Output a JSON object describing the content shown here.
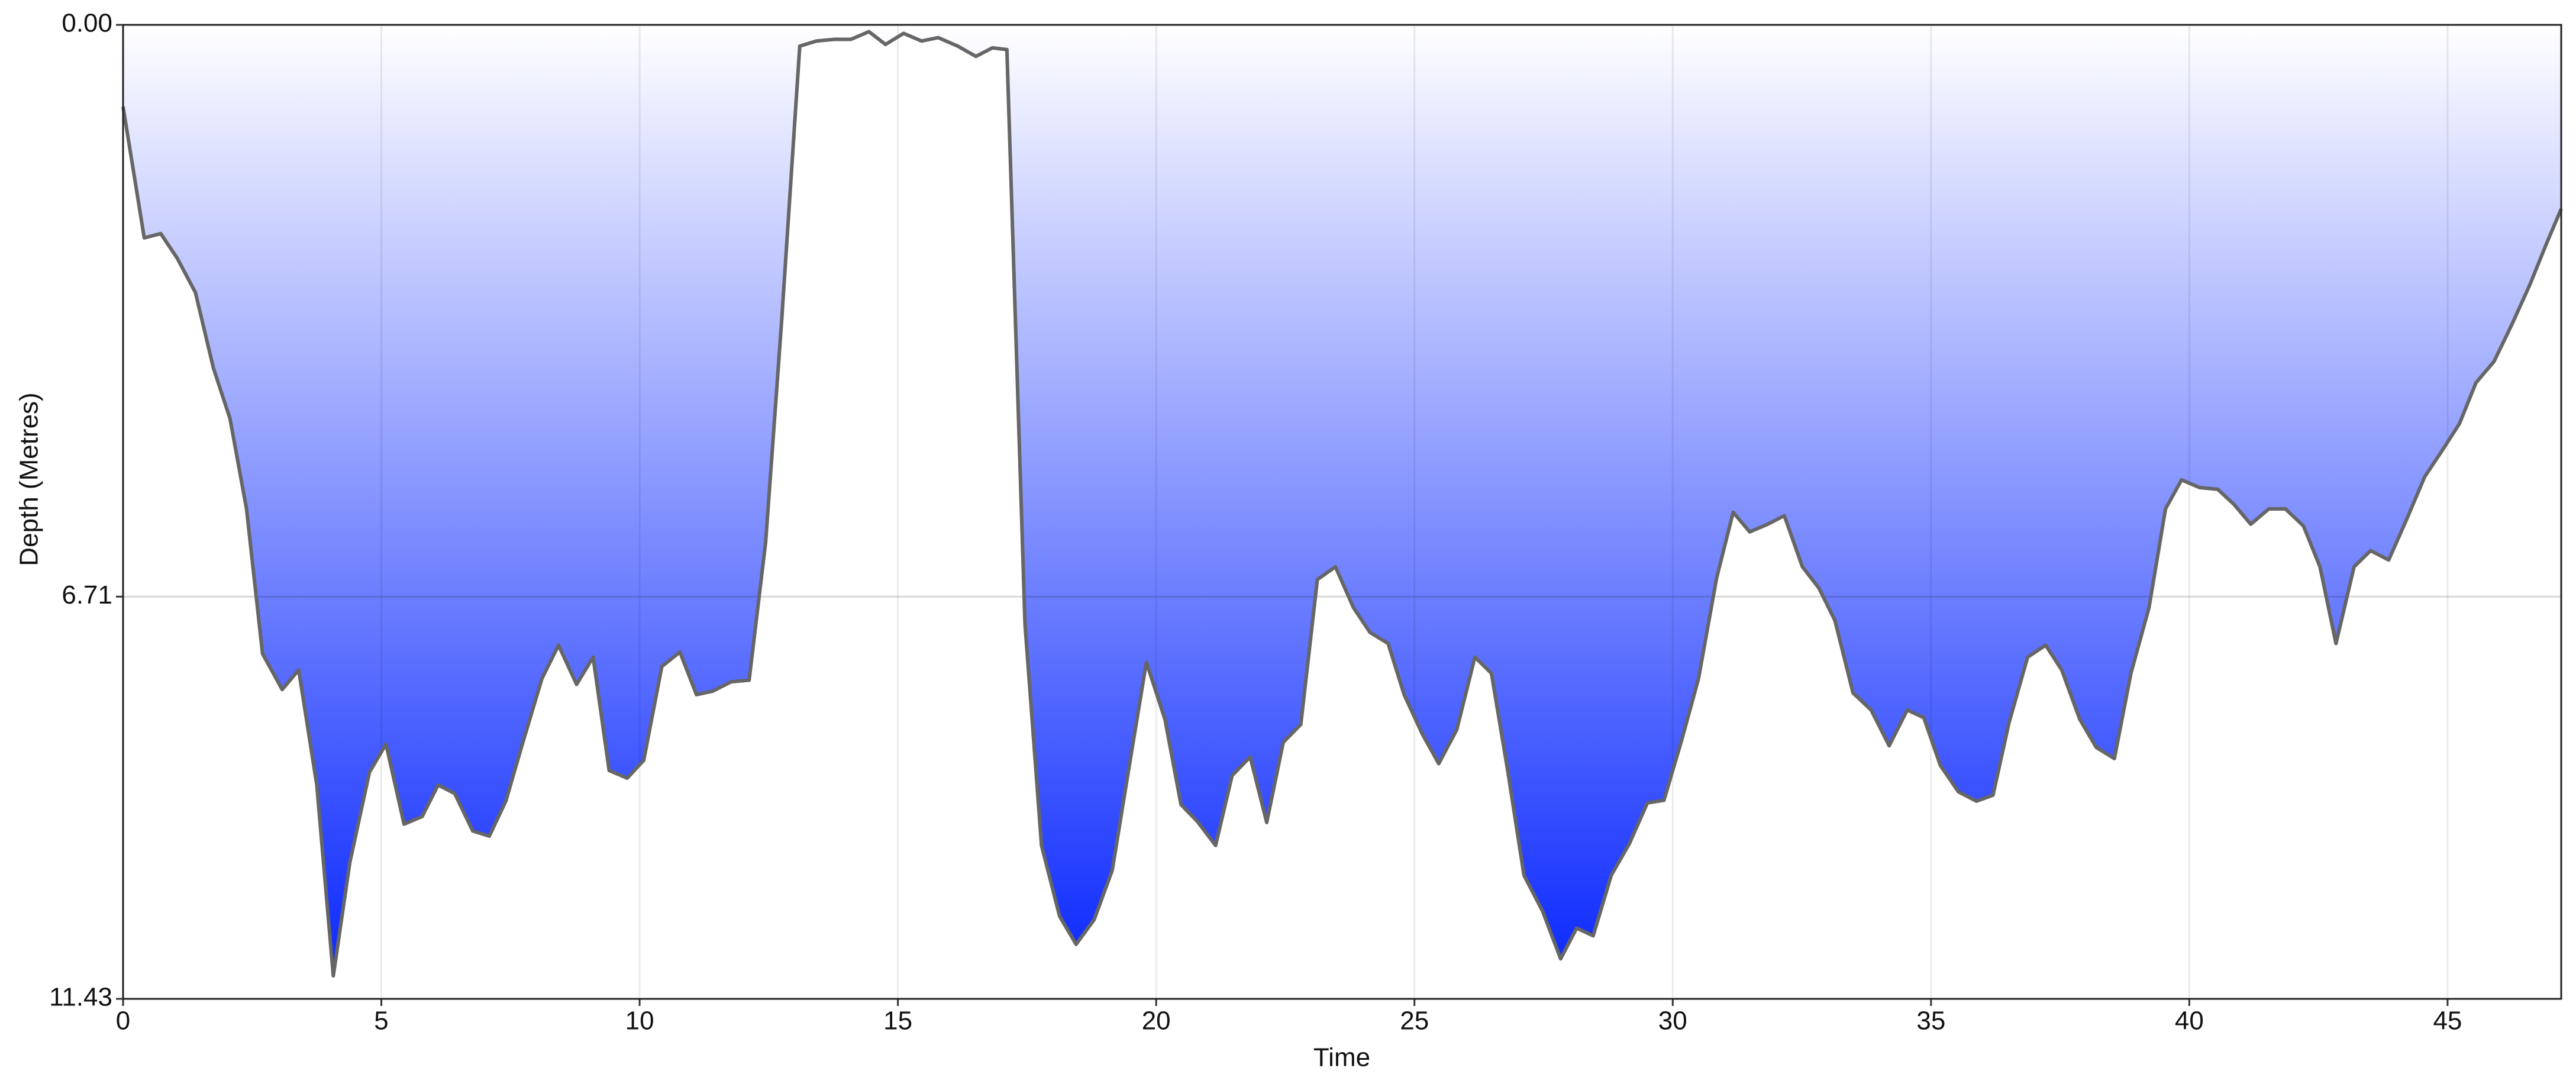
{
  "chart_data": {
    "type": "area",
    "xlabel": "Time",
    "ylabel": "Depth (Metres)",
    "x": [
      0,
      0.41,
      0.73,
      1.05,
      1.4,
      1.75,
      2.07,
      2.39,
      2.7,
      3.08,
      3.4,
      3.75,
      4.07,
      4.39,
      4.77,
      5.09,
      5.44,
      5.79,
      6.1,
      6.42,
      6.77,
      7.09,
      7.41,
      7.73,
      8.11,
      8.43,
      8.78,
      9.1,
      9.41,
      9.76,
      10.08,
      10.43,
      10.78,
      11.1,
      11.41,
      11.77,
      12.12,
      12.44,
      12.75,
      13.1,
      13.42,
      13.77,
      14.09,
      14.44,
      14.76,
      15.11,
      15.46,
      15.78,
      16.16,
      16.51,
      16.83,
      17.11,
      17.46,
      17.78,
      18.13,
      18.45,
      18.8,
      19.15,
      19.47,
      19.81,
      20.17,
      20.48,
      20.8,
      21.15,
      21.47,
      21.82,
      22.14,
      22.46,
      22.8,
      23.12,
      23.47,
      23.82,
      24.14,
      24.49,
      24.8,
      25.15,
      25.47,
      25.82,
      26.17,
      26.49,
      26.81,
      27.12,
      27.48,
      27.83,
      28.14,
      28.46,
      28.81,
      29.16,
      29.51,
      29.83,
      30.18,
      30.5,
      30.85,
      31.17,
      31.49,
      31.84,
      32.16,
      32.51,
      32.83,
      33.14,
      33.49,
      33.84,
      34.19,
      34.54,
      34.86,
      35.18,
      35.53,
      35.88,
      36.2,
      36.51,
      36.87,
      37.22,
      37.53,
      37.88,
      38.2,
      38.55,
      38.87,
      39.22,
      39.54,
      39.85,
      40.2,
      40.55,
      40.87,
      41.19,
      41.54,
      41.86,
      42.21,
      42.53,
      42.84,
      43.19,
      43.51,
      43.86,
      44.21,
      44.56,
      44.88,
      45.23,
      45.55,
      45.9,
      46.25,
      46.6,
      46.92,
      47.2
    ],
    "values": [
      0.96,
      2.5,
      2.45,
      2.74,
      3.14,
      4.03,
      4.62,
      5.68,
      7.38,
      7.8,
      7.57,
      8.92,
      11.16,
      9.83,
      8.77,
      8.44,
      9.38,
      9.29,
      8.92,
      9.02,
      9.46,
      9.52,
      9.11,
      8.44,
      7.67,
      7.28,
      7.74,
      7.42,
      8.75,
      8.84,
      8.63,
      7.53,
      7.36,
      7.86,
      7.82,
      7.71,
      7.69,
      6.07,
      3.47,
      0.25,
      0.19,
      0.17,
      0.17,
      0.08,
      0.23,
      0.1,
      0.19,
      0.15,
      0.25,
      0.37,
      0.27,
      0.29,
      7.03,
      9.63,
      10.46,
      10.79,
      10.5,
      9.92,
      8.73,
      7.48,
      8.15,
      9.15,
      9.35,
      9.63,
      8.81,
      8.59,
      9.36,
      8.42,
      8.21,
      6.51,
      6.36,
      6.84,
      7.13,
      7.26,
      7.86,
      8.32,
      8.67,
      8.27,
      7.42,
      7.61,
      8.77,
      9.98,
      10.4,
      10.96,
      10.6,
      10.69,
      9.98,
      9.61,
      9.13,
      9.1,
      8.38,
      7.67,
      6.49,
      5.72,
      5.95,
      5.86,
      5.76,
      6.36,
      6.61,
      6.99,
      7.84,
      8.04,
      8.46,
      8.04,
      8.13,
      8.69,
      9.0,
      9.11,
      9.04,
      8.19,
      7.42,
      7.28,
      7.57,
      8.15,
      8.48,
      8.61,
      7.61,
      6.84,
      5.68,
      5.34,
      5.43,
      5.45,
      5.63,
      5.86,
      5.68,
      5.68,
      5.88,
      6.36,
      7.26,
      6.36,
      6.17,
      6.28,
      5.8,
      5.3,
      5.01,
      4.68,
      4.2,
      3.95,
      3.51,
      3.04,
      2.56,
      2.16
    ],
    "color": "#0a28ff",
    "line_color": "#666666",
    "xlim": [
      0,
      47.2
    ],
    "xticks": [
      0,
      5,
      10,
      15,
      20,
      25,
      30,
      35,
      40,
      45
    ],
    "ylim": [
      0,
      11.43
    ],
    "yticks": [
      {
        "value": 0,
        "label": "0.00"
      },
      6.71,
      11.43
    ],
    "y_inverted": true,
    "grid": true
  }
}
